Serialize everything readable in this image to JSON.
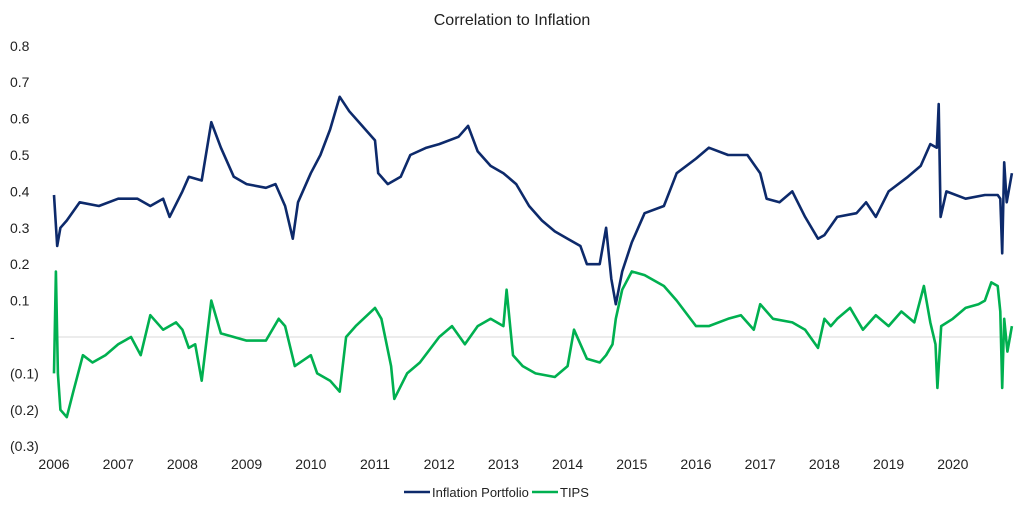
{
  "chart_data": {
    "type": "line",
    "title": "Correlation  to Inflation",
    "xlim": [
      2006,
      2021
    ],
    "ylim": [
      -0.3,
      0.8
    ],
    "x_tick_labels": [
      "2006",
      "2007",
      "2008",
      "2009",
      "2010",
      "2011",
      "2012",
      "2013",
      "2014",
      "2015",
      "2016",
      "2017",
      "2018",
      "2019",
      "2020"
    ],
    "y_ticks": [
      0.8,
      0.7,
      0.6,
      0.5,
      0.4,
      0.3,
      0.2,
      0.1,
      0,
      -0.1,
      -0.2,
      -0.3
    ],
    "y_tick_labels": [
      "0.8",
      "0.7",
      "0.6",
      "0.5",
      "0.4",
      "0.3",
      "0.2",
      "0.1",
      "-",
      "(0.1)",
      "(0.2)",
      "(0.3)"
    ],
    "legend_position": "bottom",
    "grid": false,
    "zero_line": true,
    "series": [
      {
        "name": "Inflation Portfolio",
        "color": "#0D2A6B",
        "x": [
          2006.0,
          2006.05,
          2006.1,
          2006.2,
          2006.4,
          2006.7,
          2007.0,
          2007.3,
          2007.5,
          2007.7,
          2007.8,
          2008.0,
          2008.1,
          2008.3,
          2008.45,
          2008.6,
          2008.8,
          2009.0,
          2009.3,
          2009.45,
          2009.6,
          2009.72,
          2009.8,
          2010.0,
          2010.15,
          2010.3,
          2010.45,
          2010.6,
          2010.8,
          2011.0,
          2011.05,
          2011.2,
          2011.4,
          2011.55,
          2011.8,
          2012.0,
          2012.3,
          2012.45,
          2012.6,
          2012.8,
          2013.0,
          2013.2,
          2013.4,
          2013.6,
          2013.8,
          2014.0,
          2014.2,
          2014.3,
          2014.5,
          2014.6,
          2014.68,
          2014.75,
          2014.85,
          2015.0,
          2015.2,
          2015.5,
          2015.7,
          2016.0,
          2016.2,
          2016.5,
          2016.8,
          2017.0,
          2017.1,
          2017.3,
          2017.5,
          2017.7,
          2017.9,
          2018.0,
          2018.2,
          2018.5,
          2018.65,
          2018.8,
          2019.0,
          2019.3,
          2019.5,
          2019.65,
          2019.75,
          2019.78,
          2019.81,
          2019.9,
          2020.2,
          2020.5,
          2020.7,
          2020.74,
          2020.77,
          2020.8,
          2020.84,
          2020.92
        ],
        "y": [
          0.39,
          0.25,
          0.3,
          0.32,
          0.37,
          0.36,
          0.38,
          0.38,
          0.36,
          0.38,
          0.33,
          0.4,
          0.44,
          0.43,
          0.59,
          0.52,
          0.44,
          0.42,
          0.41,
          0.42,
          0.36,
          0.27,
          0.37,
          0.45,
          0.5,
          0.57,
          0.66,
          0.62,
          0.58,
          0.54,
          0.45,
          0.42,
          0.44,
          0.5,
          0.52,
          0.53,
          0.55,
          0.58,
          0.51,
          0.47,
          0.45,
          0.42,
          0.36,
          0.32,
          0.29,
          0.27,
          0.25,
          0.2,
          0.2,
          0.3,
          0.16,
          0.09,
          0.18,
          0.26,
          0.34,
          0.36,
          0.45,
          0.49,
          0.52,
          0.5,
          0.5,
          0.45,
          0.38,
          0.37,
          0.4,
          0.33,
          0.27,
          0.28,
          0.33,
          0.34,
          0.37,
          0.33,
          0.4,
          0.44,
          0.47,
          0.53,
          0.52,
          0.64,
          0.33,
          0.4,
          0.38,
          0.39,
          0.39,
          0.38,
          0.23,
          0.48,
          0.37,
          0.45
        ]
      },
      {
        "name": "TIPS",
        "color": "#00B050",
        "x": [
          2006.0,
          2006.03,
          2006.06,
          2006.1,
          2006.2,
          2006.3,
          2006.45,
          2006.6,
          2006.8,
          2007.0,
          2007.2,
          2007.35,
          2007.5,
          2007.7,
          2007.9,
          2008.0,
          2008.1,
          2008.2,
          2008.3,
          2008.45,
          2008.6,
          2008.8,
          2009.0,
          2009.3,
          2009.5,
          2009.6,
          2009.75,
          2010.0,
          2010.1,
          2010.3,
          2010.45,
          2010.55,
          2010.7,
          2011.0,
          2011.1,
          2011.25,
          2011.3,
          2011.5,
          2011.7,
          2012.0,
          2012.2,
          2012.4,
          2012.6,
          2012.8,
          2013.0,
          2013.05,
          2013.15,
          2013.3,
          2013.5,
          2013.8,
          2014.0,
          2014.1,
          2014.3,
          2014.5,
          2014.6,
          2014.7,
          2014.75,
          2014.85,
          2015.0,
          2015.2,
          2015.5,
          2015.7,
          2016.0,
          2016.2,
          2016.5,
          2016.7,
          2016.9,
          2017.0,
          2017.2,
          2017.5,
          2017.7,
          2017.9,
          2018.0,
          2018.1,
          2018.2,
          2018.4,
          2018.6,
          2018.8,
          2019.0,
          2019.2,
          2019.4,
          2019.55,
          2019.65,
          2019.73,
          2019.76,
          2019.82,
          2020.0,
          2020.2,
          2020.4,
          2020.5,
          2020.6,
          2020.7,
          2020.74,
          2020.77,
          2020.8,
          2020.85,
          2020.92
        ],
        "y": [
          -0.1,
          0.18,
          -0.1,
          -0.2,
          -0.22,
          -0.15,
          -0.05,
          -0.07,
          -0.05,
          -0.02,
          0.0,
          -0.05,
          0.06,
          0.02,
          0.04,
          0.02,
          -0.03,
          -0.02,
          -0.12,
          0.1,
          0.01,
          0.0,
          -0.01,
          -0.01,
          0.05,
          0.03,
          -0.08,
          -0.05,
          -0.1,
          -0.12,
          -0.15,
          0.0,
          0.03,
          0.08,
          0.05,
          -0.08,
          -0.17,
          -0.1,
          -0.07,
          0.0,
          0.03,
          -0.02,
          0.03,
          0.05,
          0.03,
          0.13,
          -0.05,
          -0.08,
          -0.1,
          -0.11,
          -0.08,
          0.02,
          -0.06,
          -0.07,
          -0.05,
          -0.02,
          0.05,
          0.13,
          0.18,
          0.17,
          0.14,
          0.1,
          0.03,
          0.03,
          0.05,
          0.06,
          0.02,
          0.09,
          0.05,
          0.04,
          0.02,
          -0.03,
          0.05,
          0.03,
          0.05,
          0.08,
          0.02,
          0.06,
          0.03,
          0.07,
          0.04,
          0.14,
          0.04,
          -0.02,
          -0.14,
          0.03,
          0.05,
          0.08,
          0.09,
          0.1,
          0.15,
          0.14,
          0.07,
          -0.14,
          0.05,
          -0.04,
          0.03
        ]
      }
    ]
  }
}
